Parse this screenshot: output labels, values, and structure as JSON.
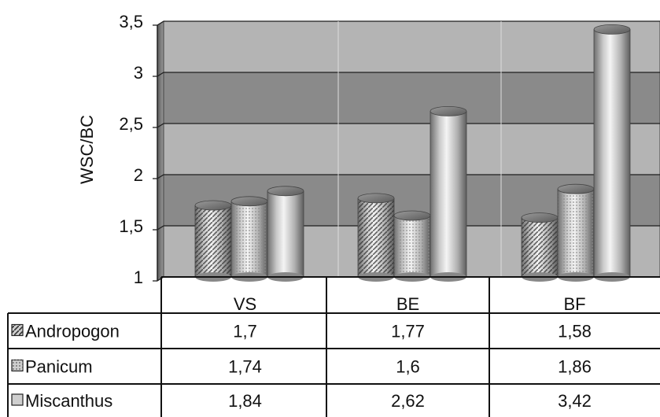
{
  "chart_data": {
    "type": "bar",
    "title": "",
    "xlabel": "",
    "ylabel": "WSC/BC",
    "categories": [
      "VS",
      "BE",
      "BF"
    ],
    "series": [
      {
        "name": "Andropogon",
        "values": [
          1.7,
          1.77,
          1.58
        ],
        "pattern": "diagonal-hatch",
        "display": [
          "1,7",
          "1,77",
          "1,58"
        ]
      },
      {
        "name": "Panicum",
        "values": [
          1.74,
          1.6,
          1.86
        ],
        "pattern": "grid-dots",
        "display": [
          "1,74",
          "1,6",
          "1,86"
        ]
      },
      {
        "name": "Miscanthus",
        "values": [
          1.84,
          2.62,
          3.42
        ],
        "pattern": "plain",
        "display": [
          "1,84",
          "2,62",
          "3,42"
        ]
      }
    ],
    "ylim": [
      1,
      3.5
    ],
    "yticks": [
      1,
      1.5,
      2,
      2.5,
      3,
      3.5
    ],
    "ytick_labels": [
      "1",
      "1,5",
      "2",
      "2,5",
      "3",
      "3,5"
    ],
    "grid": true,
    "legend": "data-table",
    "bar_shape": "3d-cylinder",
    "colors": {
      "wall_dark": "#8a8a8a",
      "wall_light": "#b4b4b4",
      "bar": "#cfcfcf",
      "bar_dark": "#7a7a7a"
    }
  }
}
